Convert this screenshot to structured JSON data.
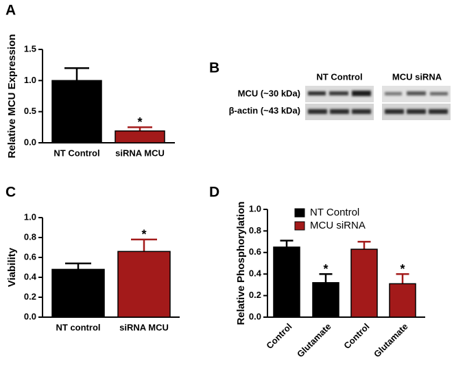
{
  "chart_data": [
    {
      "type": "bar",
      "label": "A",
      "ylabel": "Relative MCU Expression",
      "categories": [
        "NT Control",
        "siRNA MCU"
      ],
      "values": [
        1.0,
        0.19
      ],
      "errors": [
        0.2,
        0.06
      ],
      "colors": [
        "#000000",
        "#a31a1a"
      ],
      "ylim": [
        0,
        1.5
      ],
      "yticks": [
        {
          "value": 0,
          "label": "0.0"
        },
        0.5,
        {
          "value": 1,
          "label": "1.0"
        },
        1.5
      ],
      "annotations": [
        {
          "text": "*",
          "index": 1
        }
      ]
    },
    {
      "type": "bar",
      "label": "C",
      "ylabel": "Viability",
      "categories": [
        "NT control",
        "siRNA MCU"
      ],
      "values": [
        0.48,
        0.66
      ],
      "errors": [
        0.06,
        0.12
      ],
      "colors": [
        "#000000",
        "#a31a1a"
      ],
      "ylim": [
        0,
        1.0
      ],
      "yticks": [
        {
          "value": 0,
          "label": "0.0"
        },
        0.2,
        0.4,
        0.6,
        0.8,
        {
          "value": 1,
          "label": "1.0"
        }
      ],
      "annotations": [
        {
          "text": "*",
          "index": 1
        }
      ]
    },
    {
      "type": "grouped_bar",
      "label": "D",
      "ylabel": "Relative Phosphorylation",
      "categories": [
        "Control",
        "Glutamate",
        "Control",
        "Glutamate"
      ],
      "series": [
        {
          "name": "NT Control",
          "color": "#000000",
          "values": [
            0.65,
            0.32,
            null,
            null
          ],
          "errors": [
            0.06,
            0.08,
            null,
            null
          ]
        },
        {
          "name": "MCU siRNA",
          "color": "#a31a1a",
          "values": [
            null,
            null,
            0.63,
            0.31
          ],
          "errors": [
            null,
            null,
            0.07,
            0.09
          ]
        }
      ],
      "ylim": [
        0,
        1.0
      ],
      "yticks": [
        {
          "value": 0,
          "label": "0.0"
        },
        0.2,
        0.4,
        0.6,
        0.8,
        {
          "value": 1,
          "label": "1.0"
        }
      ],
      "legend": "upper left",
      "annotations": [
        {
          "text": "*",
          "series": 0,
          "index": 1
        },
        {
          "text": "*",
          "series": 1,
          "index": 3
        }
      ]
    }
  ],
  "blot": {
    "label": "B",
    "columns": [
      "NT Control",
      "MCU siRNA"
    ],
    "rows": [
      "MCU (~30 kDa)",
      "β-actin (~43 kDa)"
    ]
  }
}
